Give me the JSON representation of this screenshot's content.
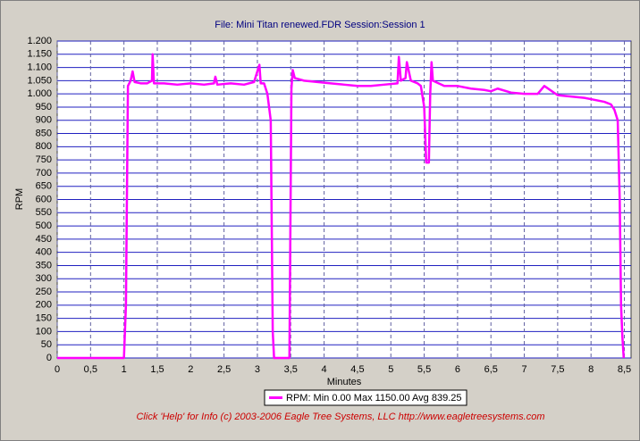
{
  "chart_data": {
    "type": "line",
    "title": "File: Mini Titan renewed.FDR   Session:Session 1",
    "x_label": "Minutes",
    "y_label": "RPM",
    "footer": "Click 'Help' for Info  (c) 2003-2006 Eagle Tree Systems, LLC     http://www.eagletreesystems.com",
    "x": [
      0,
      1.0,
      1.03,
      1.06,
      1.1,
      1.13,
      1.16,
      1.25,
      1.35,
      1.42,
      1.43,
      1.45,
      1.6,
      1.8,
      2.0,
      2.2,
      2.35,
      2.37,
      2.4,
      2.6,
      2.8,
      2.95,
      3.03,
      3.05,
      3.1,
      3.15,
      3.2,
      3.23,
      3.25,
      3.45,
      3.48,
      3.51,
      3.53,
      3.56,
      3.7,
      3.9,
      4.1,
      4.3,
      4.5,
      4.7,
      4.9,
      5.1,
      5.12,
      5.15,
      5.22,
      5.24,
      5.3,
      5.4,
      5.45,
      5.5,
      5.53,
      5.57,
      5.59,
      5.61,
      5.63,
      5.8,
      6.0,
      6.2,
      6.4,
      6.5,
      6.6,
      6.8,
      7.0,
      7.2,
      7.3,
      7.5,
      7.7,
      7.9,
      8.0,
      8.1,
      8.2,
      8.3,
      8.35,
      8.4,
      8.43,
      8.45,
      8.47,
      8.49
    ],
    "series": [
      {
        "name": "RPM:  Min 0.00 Max 1150.00 Avg 839.25",
        "color": "#ff00ff",
        "values": [
          0,
          0,
          200,
          1030,
          1050,
          1085,
          1045,
          1040,
          1040,
          1050,
          1150,
          1040,
          1040,
          1035,
          1040,
          1035,
          1040,
          1065,
          1035,
          1040,
          1035,
          1045,
          1110,
          1040,
          1040,
          1000,
          900,
          100,
          0,
          0,
          0,
          1020,
          1090,
          1060,
          1050,
          1045,
          1040,
          1035,
          1030,
          1030,
          1035,
          1040,
          1140,
          1050,
          1060,
          1120,
          1050,
          1040,
          1030,
          950,
          740,
          740,
          1000,
          1120,
          1050,
          1030,
          1030,
          1020,
          1015,
          1010,
          1020,
          1005,
          1000,
          1000,
          1030,
          995,
          990,
          985,
          980,
          975,
          970,
          960,
          940,
          900,
          600,
          200,
          80,
          0
        ]
      }
    ],
    "xlim": [
      0,
      8.6
    ],
    "ylim": [
      0,
      1200
    ],
    "xticks": [
      0,
      {
        "value": 0.5,
        "label": "0,5"
      },
      1,
      {
        "value": 1.5,
        "label": "1,5"
      },
      2,
      {
        "value": 2.5,
        "label": "2,5"
      },
      3,
      {
        "value": 3.5,
        "label": "3,5"
      },
      4,
      {
        "value": 4.5,
        "label": "4,5"
      },
      5,
      {
        "value": 5.5,
        "label": "5,5"
      },
      6,
      {
        "value": 6.5,
        "label": "6,5"
      },
      7,
      {
        "value": 7.5,
        "label": "7,5"
      },
      8,
      {
        "value": 8.5,
        "label": "8,5"
      }
    ],
    "yticks": [
      0,
      50,
      100,
      150,
      200,
      250,
      300,
      350,
      400,
      450,
      500,
      550,
      600,
      650,
      700,
      750,
      800,
      850,
      900,
      950,
      {
        "value": 1000,
        "label": "1.000"
      },
      {
        "value": 1050,
        "label": "1.050"
      },
      {
        "value": 1100,
        "label": "1.100"
      },
      {
        "value": 1150,
        "label": "1.150"
      },
      {
        "value": 1200,
        "label": "1.200"
      }
    ],
    "grid": true
  }
}
